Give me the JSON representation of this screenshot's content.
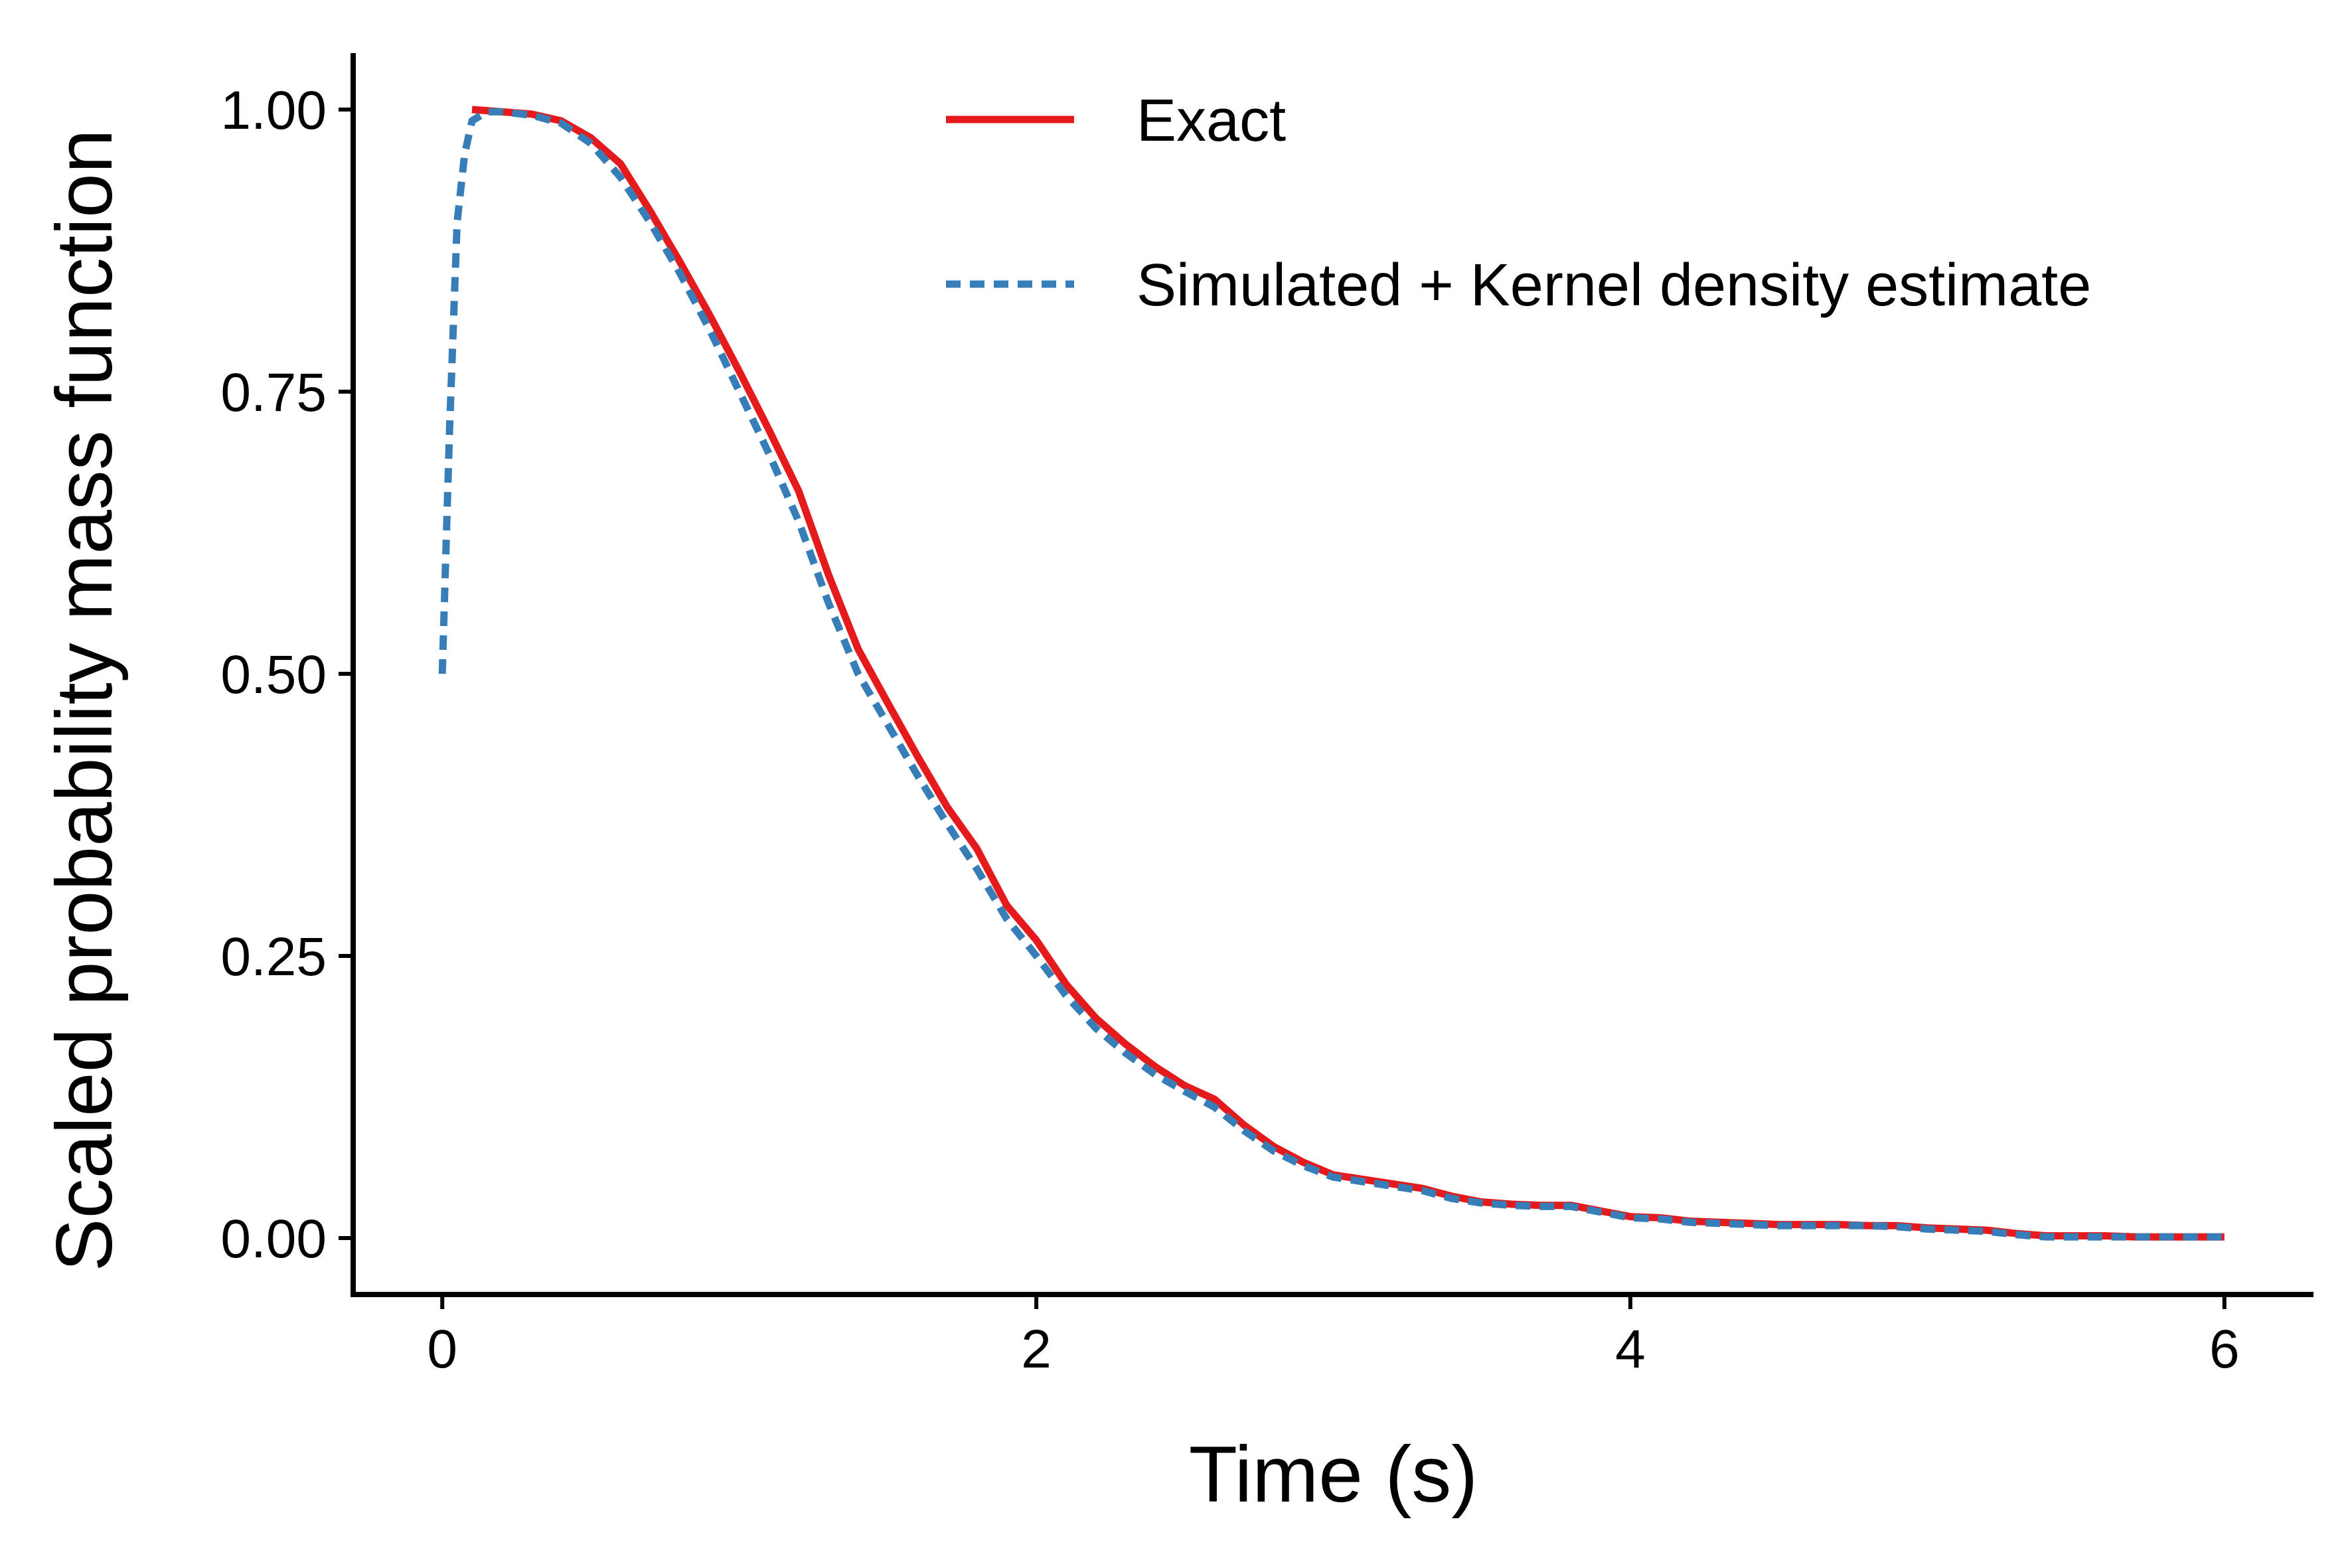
{
  "chart_data": {
    "type": "line",
    "xlabel": "Time (s)",
    "ylabel": "Scaled probability mass function",
    "xlim": [
      -0.3,
      6.3
    ],
    "ylim": [
      -0.05,
      1.05
    ],
    "x_ticks": [
      0,
      2,
      4,
      6
    ],
    "x_tick_labels": [
      "0",
      "2",
      "4",
      "6"
    ],
    "y_ticks": [
      0,
      0.25,
      0.5,
      0.75,
      1.0
    ],
    "y_tick_labels": [
      "0.00",
      "0.25",
      "0.50",
      "0.75",
      "1.00"
    ],
    "grid": false,
    "legend": "top-right",
    "series": [
      {
        "name": "Exact",
        "color": "#E41A1C",
        "dash": "solid",
        "x": [
          0.1,
          0.2,
          0.3,
          0.4,
          0.5,
          0.6,
          0.7,
          0.8,
          0.9,
          1.0,
          1.1,
          1.2,
          1.3,
          1.4,
          1.5,
          1.6,
          1.7,
          1.8,
          1.9,
          2.0,
          2.1,
          2.2,
          2.3,
          2.4,
          2.5,
          2.6,
          2.7,
          2.8,
          2.9,
          3.0,
          3.1,
          3.2,
          3.3,
          3.4,
          3.5,
          3.6,
          3.7,
          3.8,
          3.9,
          4.0,
          4.1,
          4.2,
          4.3,
          4.4,
          4.5,
          4.6,
          4.7,
          4.8,
          4.9,
          5.0,
          5.1,
          5.2,
          5.3,
          5.4,
          5.5,
          5.6,
          5.7,
          5.8,
          5.9,
          6.0
        ],
        "y": [
          1.0,
          0.998,
          0.996,
          0.99,
          0.975,
          0.952,
          0.91,
          0.865,
          0.818,
          0.768,
          0.716,
          0.662,
          0.588,
          0.522,
          0.474,
          0.427,
          0.382,
          0.345,
          0.295,
          0.264,
          0.225,
          0.195,
          0.172,
          0.152,
          0.135,
          0.123,
          0.1,
          0.081,
          0.067,
          0.056,
          0.052,
          0.048,
          0.044,
          0.037,
          0.032,
          0.03,
          0.029,
          0.029,
          0.024,
          0.019,
          0.018,
          0.015,
          0.014,
          0.013,
          0.012,
          0.012,
          0.012,
          0.011,
          0.011,
          0.009,
          0.008,
          0.007,
          0.004,
          0.002,
          0.002,
          0.002,
          0.001,
          0.001,
          0.001,
          0.001
        ]
      },
      {
        "name": "Simulated + Kernel density estimate",
        "color": "#377EB8",
        "dash": "dotted",
        "x": [
          0.0,
          0.025,
          0.05,
          0.075,
          0.1,
          0.15,
          0.2,
          0.3,
          0.4,
          0.5,
          0.6,
          0.7,
          0.8,
          0.9,
          1.0,
          1.1,
          1.2,
          1.3,
          1.4,
          1.5,
          1.6,
          1.7,
          1.8,
          1.9,
          2.0,
          2.1,
          2.2,
          2.3,
          2.4,
          2.5,
          2.6,
          2.7,
          2.8,
          2.9,
          3.0,
          3.1,
          3.2,
          3.3,
          3.4,
          3.5,
          3.6,
          3.7,
          3.8,
          3.9,
          4.0,
          4.1,
          4.2,
          4.3,
          4.4,
          4.5,
          4.6,
          4.7,
          4.8,
          4.9,
          5.0,
          5.1,
          5.2,
          5.3,
          5.4,
          5.5,
          5.6,
          5.7,
          5.8,
          5.9,
          6.0
        ],
        "y": [
          0.5,
          0.72,
          0.9,
          0.96,
          0.99,
          0.998,
          0.998,
          0.995,
          0.988,
          0.97,
          0.94,
          0.9,
          0.855,
          0.805,
          0.75,
          0.695,
          0.635,
          0.563,
          0.5,
          0.455,
          0.41,
          0.367,
          0.327,
          0.283,
          0.25,
          0.215,
          0.186,
          0.164,
          0.145,
          0.13,
          0.116,
          0.095,
          0.077,
          0.064,
          0.054,
          0.05,
          0.046,
          0.042,
          0.035,
          0.031,
          0.029,
          0.028,
          0.028,
          0.023,
          0.018,
          0.017,
          0.014,
          0.013,
          0.012,
          0.011,
          0.011,
          0.011,
          0.011,
          0.01,
          0.008,
          0.007,
          0.006,
          0.003,
          0.001,
          0.001,
          0.001,
          0.001,
          0.001,
          0.001,
          0.001
        ]
      }
    ]
  }
}
